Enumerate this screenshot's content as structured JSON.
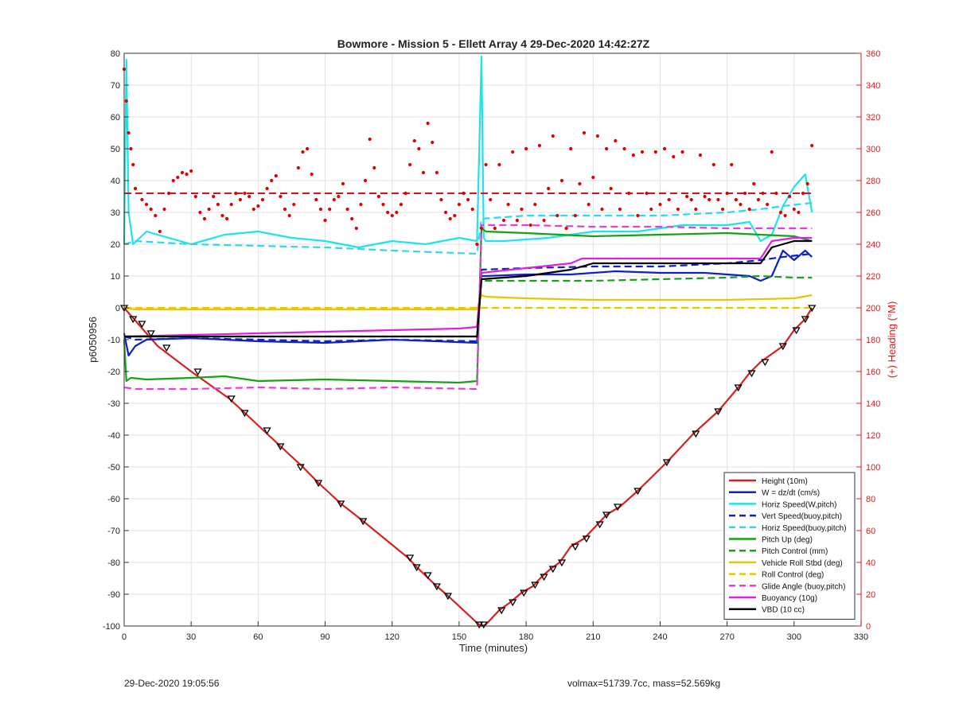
{
  "chart_data": {
    "type": "line",
    "title": "Bowmore - Mission 5 - Ellett Array 4 29-Dec-2020 14:42:27Z",
    "xlabel": "Time (minutes)",
    "ylabel_left": "p6050956",
    "ylabel_right": "(+) Heading (°M)",
    "xlim": [
      0,
      330
    ],
    "ylim_left": [
      -100,
      80
    ],
    "ylim_right": [
      0,
      360
    ],
    "xticks": [
      0,
      30,
      60,
      90,
      120,
      150,
      180,
      210,
      240,
      270,
      300,
      330
    ],
    "yticks_left": [
      -100,
      -90,
      -80,
      -70,
      -60,
      -50,
      -40,
      -30,
      -20,
      -10,
      0,
      10,
      20,
      30,
      40,
      50,
      60,
      70,
      80
    ],
    "yticks_right": [
      0,
      20,
      40,
      60,
      80,
      100,
      120,
      140,
      160,
      180,
      200,
      220,
      240,
      260,
      280,
      300,
      320,
      340,
      360
    ],
    "grid": true,
    "legend_position": "bottom-right",
    "series": [
      {
        "name": "Height (10m)",
        "color": "#d62020",
        "style": "solid",
        "x": [
          0,
          5,
          15,
          30,
          47,
          54,
          70,
          80,
          87,
          97,
          107,
          127,
          131,
          140,
          145,
          158,
          160,
          162,
          168,
          173,
          178,
          183,
          187,
          191,
          195,
          200,
          206,
          212,
          216,
          222,
          230,
          243,
          255,
          266,
          275,
          280,
          285,
          295,
          300,
          305,
          308
        ],
        "values": [
          0,
          -4,
          -12,
          -20,
          -28.5,
          -33,
          -43.5,
          -50,
          -55,
          -61.5,
          -67,
          -78.5,
          -81.5,
          -87.5,
          -90.5,
          -99,
          -100,
          -99.5,
          -95,
          -92.5,
          -89.5,
          -87.5,
          -84.5,
          -82,
          -80,
          -75,
          -72.5,
          -68,
          -65,
          -62.5,
          -57.5,
          -48.5,
          -39.5,
          -32.5,
          -25,
          -20.5,
          -17,
          -12,
          -7,
          -3.5,
          0
        ]
      },
      {
        "name": "W = dz/dt (cm/s)",
        "color": "#1020c8",
        "style": "solid",
        "x": [
          0,
          2,
          5,
          10,
          30,
          60,
          90,
          120,
          140,
          158,
          160,
          162,
          180,
          200,
          220,
          240,
          260,
          280,
          285,
          290,
          295,
          300,
          305,
          308
        ],
        "values": [
          -8,
          -15,
          -12,
          -10,
          -9.5,
          -10.5,
          -11,
          -10,
          -10.5,
          -11,
          10,
          10,
          10.5,
          10.5,
          11.5,
          11,
          11,
          10,
          8.5,
          10,
          18,
          15,
          18,
          16
        ]
      },
      {
        "name": "Horiz Speed(W,pitch)",
        "color": "#1ee3e8",
        "style": "solid",
        "x": [
          0,
          1,
          2,
          4,
          10,
          20,
          30,
          45,
          60,
          75,
          90,
          105,
          120,
          135,
          150,
          158,
          160,
          161,
          162,
          170,
          190,
          210,
          230,
          250,
          270,
          280,
          285,
          290,
          295,
          300,
          305,
          308
        ],
        "values": [
          20,
          78,
          30,
          20,
          24,
          22,
          20,
          23,
          24,
          22,
          21,
          19,
          21,
          20,
          22,
          21,
          79,
          22,
          21,
          21,
          22,
          24,
          24,
          26,
          26,
          27,
          21,
          23,
          32,
          38,
          42,
          30
        ]
      },
      {
        "name": "Vert Speed(buoy,pitch)",
        "color": "#1020c8",
        "style": "dashed",
        "x": [
          0,
          5,
          30,
          60,
          90,
          120,
          158,
          160,
          180,
          210,
          240,
          270,
          285,
          295,
          308
        ],
        "values": [
          -9,
          -10,
          -9.5,
          -10,
          -10.5,
          -10,
          -10.5,
          12,
          12.5,
          13,
          13,
          14,
          15,
          16,
          17
        ]
      },
      {
        "name": "Horiz Speed(buoy,pitch)",
        "color": "#30d8e8",
        "style": "dashed",
        "x": [
          0,
          5,
          30,
          60,
          90,
          120,
          158,
          160,
          180,
          210,
          240,
          270,
          285,
          295,
          308
        ],
        "values": [
          20,
          21,
          20,
          19.5,
          19,
          18,
          17,
          28,
          29,
          29,
          29,
          30,
          31,
          32,
          33
        ]
      },
      {
        "name": "Pitch Up (deg)",
        "color": "#18a018",
        "style": "solid",
        "x": [
          0,
          1,
          3,
          10,
          30,
          45,
          60,
          90,
          120,
          150,
          158,
          160,
          162,
          180,
          210,
          240,
          270,
          285,
          300,
          308
        ],
        "values": [
          -10,
          -23,
          -22,
          -22.5,
          -22,
          -21.5,
          -23,
          -22.5,
          -23,
          -23.5,
          -23,
          25,
          24,
          23.5,
          22.5,
          23,
          23.5,
          23,
          22.5,
          21
        ]
      },
      {
        "name": "Pitch Control (mm)",
        "color": "#18a018",
        "style": "dashed",
        "x": [
          0,
          5,
          30,
          60,
          90,
          120,
          158,
          160,
          180,
          210,
          240,
          270,
          285,
          300,
          308
        ],
        "values": [
          -9,
          -9,
          -9,
          -9,
          -9,
          -9,
          -9,
          8.5,
          8.5,
          8.5,
          9,
          9.5,
          10,
          9.5,
          9.5
        ]
      },
      {
        "name": "Vehicle Roll Stbd (deg)",
        "color": "#e6c800",
        "style": "solid",
        "x": [
          0,
          5,
          30,
          60,
          90,
          120,
          150,
          158,
          160,
          162,
          180,
          210,
          240,
          270,
          300,
          308
        ],
        "values": [
          0,
          -0.5,
          -0.5,
          -0.5,
          -0.5,
          -0.5,
          -0.5,
          -0.5,
          4,
          3.5,
          3,
          2.5,
          2.5,
          2.5,
          3,
          4
        ]
      },
      {
        "name": "Roll Control (deg)",
        "color": "#e6c800",
        "style": "dashed",
        "x": [
          0,
          30,
          60,
          90,
          120,
          158,
          160,
          180,
          210,
          240,
          270,
          300,
          308
        ],
        "values": [
          0,
          0,
          0,
          0,
          0,
          0,
          0,
          0,
          0,
          0,
          0,
          0,
          0
        ]
      },
      {
        "name": "Glide Angle (buoy,pitch)",
        "color": "#e83ce0",
        "style": "dashed",
        "x": [
          0,
          5,
          30,
          60,
          90,
          120,
          158,
          160,
          180,
          210,
          240,
          270,
          300,
          308
        ],
        "values": [
          -25,
          -25.5,
          -25.5,
          -25,
          -25.5,
          -25,
          -25.5,
          26,
          26,
          25.5,
          25.5,
          25,
          25,
          25
        ]
      },
      {
        "name": "Buoyancy (10g)",
        "color": "#e020e0",
        "style": "solid",
        "x": [
          0,
          30,
          60,
          90,
          120,
          150,
          158,
          160,
          180,
          200,
          205,
          240,
          285,
          290,
          300,
          308
        ],
        "values": [
          -9,
          -8.5,
          -8,
          -7.5,
          -7,
          -6.5,
          -6,
          11,
          12.5,
          14,
          15.5,
          15.5,
          15.5,
          21,
          22,
          22
        ]
      },
      {
        "name": "VBD (10 cc)",
        "color": "#000000",
        "style": "solid",
        "x": [
          0,
          30,
          60,
          90,
          120,
          150,
          158,
          160,
          180,
          200,
          210,
          240,
          285,
          290,
          300,
          308
        ],
        "values": [
          -9,
          -9,
          -9,
          -9,
          -9,
          -9,
          -9,
          9,
          10,
          12,
          14,
          14,
          14,
          19,
          21,
          21
        ]
      }
    ],
    "heading_scatter": {
      "name": "Heading",
      "axis": "right",
      "color": "#e00000",
      "mean_line": 272,
      "x": [
        0,
        1,
        2,
        3,
        4,
        5,
        8,
        10,
        12,
        14,
        16,
        18,
        20,
        22,
        24,
        26,
        28,
        30,
        32,
        34,
        36,
        38,
        40,
        42,
        44,
        46,
        48,
        50,
        52,
        54,
        56,
        58,
        60,
        62,
        64,
        66,
        68,
        70,
        72,
        74,
        76,
        78,
        80,
        82,
        84,
        86,
        88,
        90,
        92,
        94,
        96,
        98,
        100,
        102,
        104,
        106,
        108,
        110,
        112,
        114,
        116,
        118,
        120,
        122,
        124,
        126,
        128,
        130,
        132,
        134,
        136,
        138,
        140,
        142,
        144,
        146,
        148,
        150,
        152,
        154,
        156,
        158,
        160,
        162,
        164,
        166,
        168,
        170,
        172,
        174,
        176,
        178,
        180,
        182,
        184,
        186,
        188,
        190,
        192,
        194,
        196,
        198,
        200,
        202,
        204,
        206,
        208,
        210,
        212,
        214,
        216,
        218,
        220,
        222,
        224,
        226,
        228,
        230,
        232,
        234,
        236,
        238,
        240,
        242,
        244,
        246,
        248,
        250,
        252,
        254,
        256,
        258,
        260,
        262,
        264,
        266,
        268,
        270,
        272,
        274,
        276,
        278,
        280,
        282,
        284,
        286,
        288,
        290,
        292,
        294,
        296,
        298,
        300,
        302,
        304,
        306,
        308
      ],
      "values": [
        350,
        330,
        310,
        300,
        290,
        275,
        268,
        265,
        262,
        258,
        248,
        262,
        272,
        280,
        282,
        285,
        284,
        286,
        270,
        260,
        256,
        262,
        270,
        265,
        258,
        256,
        265,
        272,
        268,
        272,
        270,
        262,
        264,
        268,
        275,
        280,
        283,
        270,
        262,
        258,
        265,
        288,
        298,
        300,
        284,
        268,
        262,
        255,
        262,
        268,
        270,
        278,
        262,
        256,
        250,
        265,
        280,
        306,
        288,
        270,
        265,
        260,
        258,
        260,
        265,
        272,
        290,
        305,
        300,
        285,
        316,
        304,
        285,
        268,
        260,
        256,
        258,
        265,
        272,
        268,
        262,
        240,
        250,
        290,
        268,
        250,
        290,
        255,
        265,
        298,
        255,
        262,
        300,
        252,
        265,
        302,
        255,
        275,
        308,
        258,
        280,
        250,
        300,
        258,
        278,
        310,
        265,
        282,
        308,
        262,
        300,
        275,
        305,
        262,
        300,
        272,
        296,
        258,
        298,
        272,
        262,
        298,
        265,
        300,
        268,
        295,
        262,
        298,
        270,
        268,
        262,
        296,
        270,
        268,
        290,
        268,
        262,
        272,
        290,
        268,
        265,
        272,
        262,
        278,
        268,
        272,
        265,
        298,
        272,
        260,
        258,
        270,
        262,
        260,
        272,
        278,
        302
      ]
    },
    "track_markers": {
      "description_series": "Height (10m)",
      "x": [
        0,
        4,
        8,
        12,
        19,
        33,
        48,
        54,
        64,
        70,
        79,
        87,
        97,
        107,
        128,
        131,
        136,
        140,
        145,
        159,
        161,
        169,
        174,
        179,
        184,
        188,
        192,
        196,
        202,
        207,
        213,
        216,
        221,
        230,
        243,
        256,
        266,
        275,
        281,
        287,
        295,
        301,
        305,
        308
      ],
      "values": [
        0,
        -3.5,
        -5,
        -8,
        -12.5,
        -20,
        -28.5,
        -33,
        -38.5,
        -43.5,
        -50,
        -55,
        -61.5,
        -67,
        -78.5,
        -81.5,
        -84,
        -87.5,
        -90.5,
        -99.5,
        -99.5,
        -95,
        -92.5,
        -89.5,
        -87,
        -84.5,
        -82,
        -80,
        -75,
        -72.5,
        -68,
        -65,
        -62.5,
        -57.5,
        -48.5,
        -39.5,
        -32.5,
        -25,
        -20.5,
        -17,
        -12,
        -7,
        -3.5,
        0
      ]
    }
  },
  "footer": {
    "left": "29-Dec-2020 19:05:56",
    "right": "volmax=51739.7cc, mass=52.569kg"
  }
}
